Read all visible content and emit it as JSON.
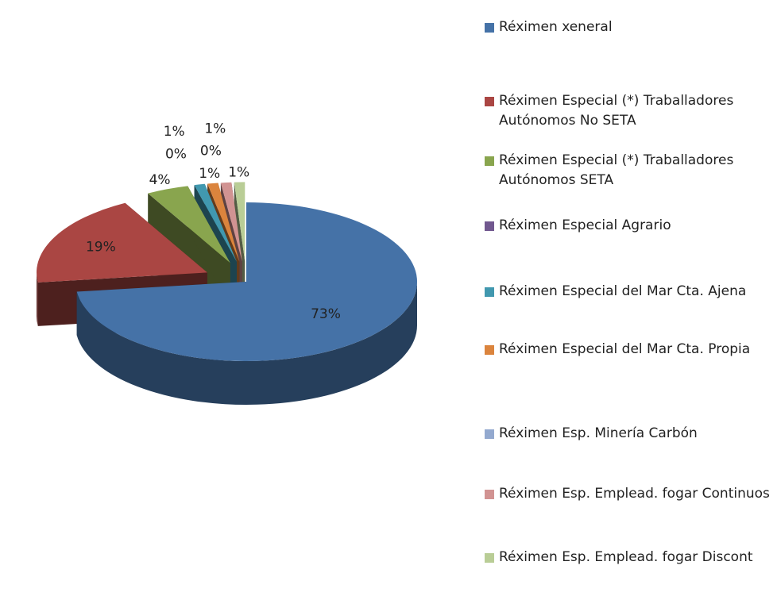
{
  "chart_data": {
    "type": "pie",
    "categories": [
      "Réximen xeneral",
      "Réximen Especial (*) Traballadores Autónomos  No SETA",
      "Réximen Especial (*) Traballadores Autónomos  SETA",
      "Réximen Especial  Agrario",
      "Réximen Especial del Mar Cta. Ajena",
      "Réximen Especial del Mar Cta. Propia",
      "Réximen  Esp. Minería Carbón",
      "Réximen Esp. Emplead. fogar Continuos",
      "Réximen Esp. Emplead. fogar Discont"
    ],
    "values": [
      73,
      19,
      4,
      0,
      1,
      1,
      0,
      1,
      1
    ],
    "value_labels": [
      "73%",
      "19%",
      "4%",
      "0%",
      "1%",
      "1%",
      "0%",
      "1%",
      "1%"
    ],
    "colors": [
      "#4572a7",
      "#aa4643",
      "#89a54e",
      "#71588f",
      "#4198af",
      "#db843d",
      "#93a9cf",
      "#d19392",
      "#b9cd96"
    ],
    "legend": "right"
  }
}
